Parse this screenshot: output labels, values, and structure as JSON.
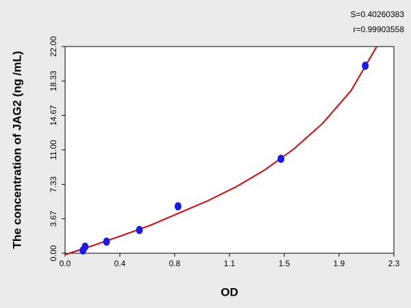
{
  "chart_data": {
    "type": "scatter",
    "xlabel": "OD",
    "ylabel": "The concentration of JAG2 (ng /mL)",
    "annotations": [
      "S=0.40260383",
      "r=0.99903558"
    ],
    "xlim": [
      0,
      2.3
    ],
    "ylim": [
      0,
      22
    ],
    "xticks": [
      {
        "value": 0,
        "label": "0.0"
      },
      {
        "value": 0.3833,
        "label": "0.4"
      },
      {
        "value": 0.7667,
        "label": "0.8"
      },
      {
        "value": 1.15,
        "label": "1.1"
      },
      {
        "value": 1.5333,
        "label": "1.5"
      },
      {
        "value": 1.9167,
        "label": "1.9"
      },
      {
        "value": 2.3,
        "label": "2.3"
      }
    ],
    "yticks": [
      {
        "value": 0,
        "label": "0.00"
      },
      {
        "value": 3.67,
        "label": "3.67"
      },
      {
        "value": 7.33,
        "label": "7.33"
      },
      {
        "value": 11,
        "label": "11.00"
      },
      {
        "value": 14.67,
        "label": "14.67"
      },
      {
        "value": 18.33,
        "label": "18.33"
      },
      {
        "value": 22,
        "label": "22.00"
      }
    ],
    "series": [
      {
        "type": "scatter",
        "color": "#1a1aee",
        "x": [
          0.125,
          0.14,
          0.29,
          0.52,
          0.79,
          1.51,
          2.1
        ],
        "values": [
          0.3,
          0.7,
          1.24,
          2.48,
          5.0,
          10.05,
          19.96
        ]
      },
      {
        "type": "line",
        "color": "#e00000",
        "x": [
          0.0,
          0.05,
          0.2,
          0.4,
          0.6,
          0.8,
          1.0,
          1.2,
          1.4,
          1.6,
          1.8,
          2.0,
          2.18
        ],
        "values": [
          -0.15,
          0.1,
          0.85,
          1.9,
          3.0,
          4.3,
          5.6,
          7.1,
          8.9,
          11.1,
          13.8,
          17.3,
          22
        ]
      }
    ]
  }
}
